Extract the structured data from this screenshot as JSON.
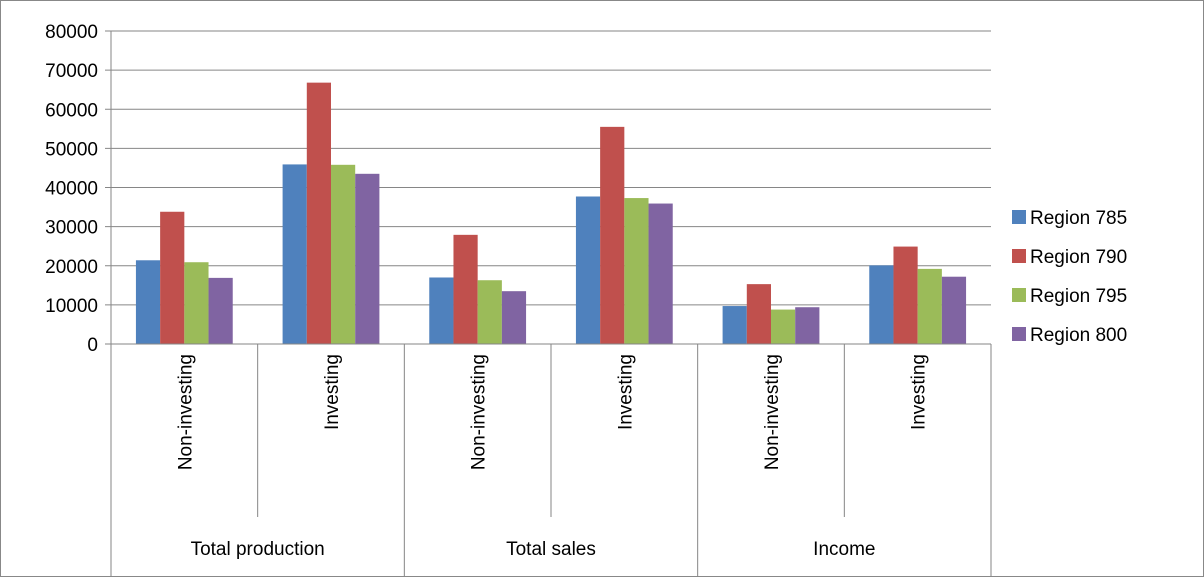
{
  "chart_data": {
    "type": "bar",
    "title": "",
    "xlabel": "",
    "ylabel": "",
    "ylim": [
      0,
      80000
    ],
    "yticks": [
      0,
      10000,
      20000,
      30000,
      40000,
      50000,
      60000,
      70000,
      80000
    ],
    "grid": true,
    "legend_position": "right",
    "groups": [
      {
        "label": "Total production",
        "categories": [
          "Non-investing",
          "Investing"
        ]
      },
      {
        "label": "Total sales",
        "categories": [
          "Non-investing",
          "Investing"
        ]
      },
      {
        "label": "Income",
        "categories": [
          "Non-investing",
          "Investing"
        ]
      }
    ],
    "series": [
      {
        "name": "Region 785",
        "color": "#4F81BD",
        "values": [
          21400,
          45900,
          17000,
          37700,
          9700,
          20100
        ]
      },
      {
        "name": "Region 790",
        "color": "#C0504D",
        "values": [
          33800,
          66800,
          27900,
          55500,
          15300,
          24900
        ]
      },
      {
        "name": "Region 795",
        "color": "#9BBB59",
        "values": [
          20900,
          45800,
          16300,
          37300,
          8800,
          19200
        ]
      },
      {
        "name": "Region 800",
        "color": "#8064A2",
        "values": [
          16900,
          43500,
          13500,
          35900,
          9400,
          17200
        ]
      }
    ]
  }
}
